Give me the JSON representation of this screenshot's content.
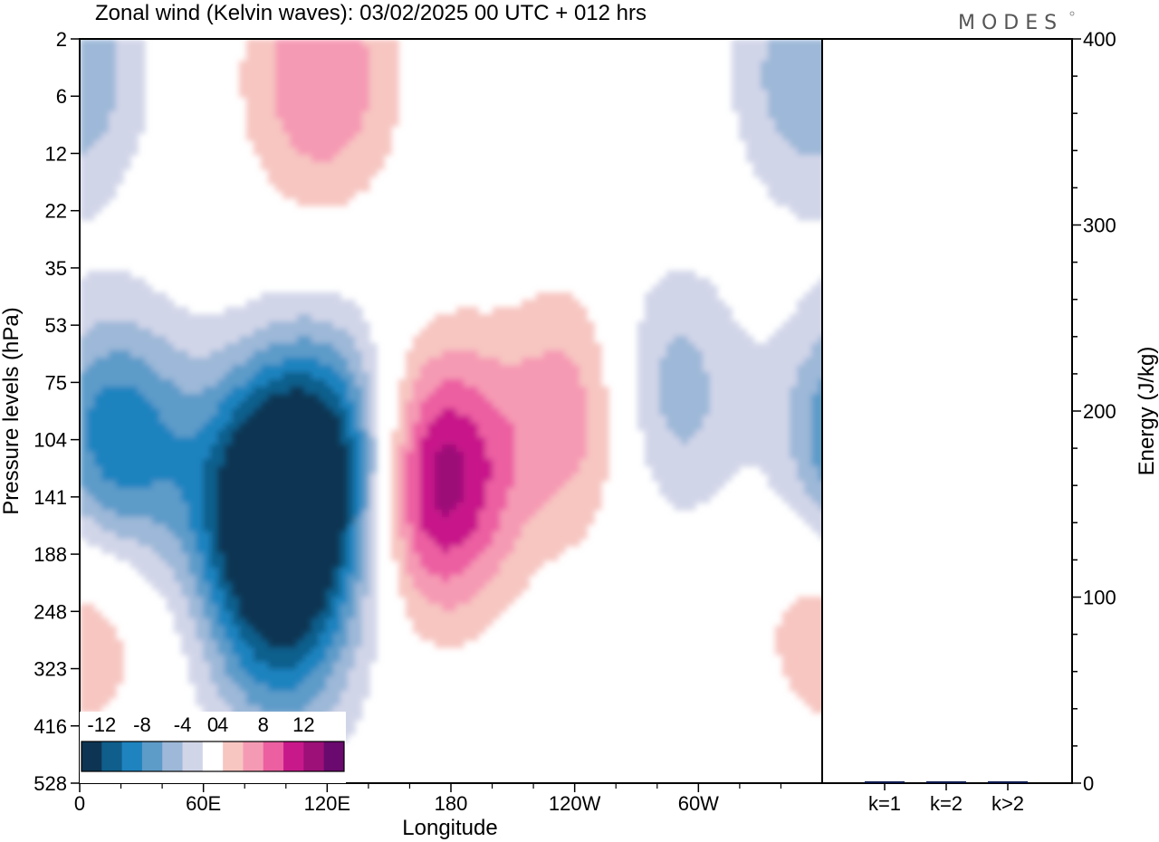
{
  "header": {
    "title": "Zonal wind (Kelvin waves):  03/02/2025  00 UTC  + 012 hrs",
    "brand": "MODES"
  },
  "chart_data": [
    {
      "type": "heatmap",
      "title": "Zonal wind (Kelvin waves):  03/02/2025  00 UTC  + 012 hrs",
      "xlabel": "Longitude",
      "ylabel": "Pressure levels (hPa)",
      "x_ticks": [
        "0",
        "60E",
        "120E",
        "180",
        "120W",
        "60W"
      ],
      "x_tick_degrees": [
        0,
        60,
        120,
        180,
        240,
        300
      ],
      "xlim": [
        0,
        360
      ],
      "y_ticks": [
        "2",
        "6",
        "12",
        "22",
        "35",
        "53",
        "75",
        "104",
        "141",
        "188",
        "248",
        "323",
        "416",
        "528"
      ],
      "y_scale": "pressure levels, top 2 hPa to bottom 528 hPa",
      "colorbar": {
        "labels": [
          "-12",
          "-8",
          "-4",
          "0",
          "4",
          "8",
          "12"
        ],
        "bins": [
          -14,
          -12,
          -10,
          -8,
          -6,
          -4,
          -2,
          2,
          4,
          6,
          8,
          10,
          12,
          14
        ],
        "colors": [
          "#0d3553",
          "#0f5e8c",
          "#1f83bf",
          "#5d9bc9",
          "#9db8d8",
          "#d1d5e8",
          "#ffffff",
          "#f7c6c1",
          "#f59ab4",
          "#ec5fa1",
          "#c8198a",
          "#9c1078",
          "#6a0a6e"
        ]
      },
      "fields": [
        {
          "sign": "negative",
          "peak": -14,
          "lon": 92,
          "level_index": 8.0,
          "description_lat": "main westward-tilted negative anomaly"
        },
        {
          "sign": "negative",
          "peak": -10,
          "lon": 18,
          "level_index": 7.1
        },
        {
          "sign": "negative",
          "peak": -10,
          "lon": 124,
          "level_index": 7.3
        },
        {
          "sign": "negative",
          "peak": -8,
          "lon": 98,
          "level_index": 10.3
        },
        {
          "sign": "negative",
          "peak": -6,
          "lon": 283,
          "level_index": 6.2
        },
        {
          "sign": "negative",
          "peak": -6,
          "lon": 355,
          "level_index": 0.6
        },
        {
          "sign": "positive",
          "peak": 12,
          "lon": 172,
          "level_index": 7.7
        },
        {
          "sign": "positive",
          "peak": 6,
          "lon": 243,
          "level_index": 6.5
        },
        {
          "sign": "positive",
          "peak": 6,
          "lon": 117,
          "level_index": 0.7
        },
        {
          "sign": "positive",
          "peak": 4,
          "lon": 4,
          "level_index": 10.0
        }
      ]
    },
    {
      "type": "bar",
      "categories": [
        "k=1",
        "k=2",
        "k>2"
      ],
      "values": [
        1,
        1,
        1
      ],
      "ylabel": "Energy (J/kg)",
      "ylim": [
        0,
        400
      ],
      "y_ticks": [
        0,
        100,
        200,
        300,
        400
      ],
      "bar_color": "#0c1a4e"
    }
  ]
}
